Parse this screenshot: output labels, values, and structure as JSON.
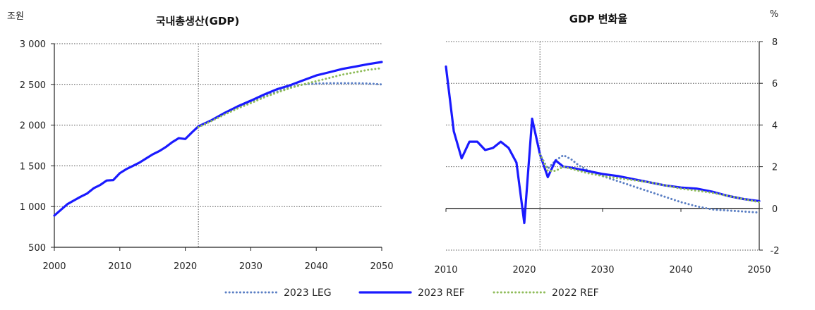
{
  "chart_data": [
    {
      "type": "line",
      "title": "국내총생산(GDP)",
      "unit_label": "조원",
      "xlim": [
        2000,
        2050
      ],
      "ylim": [
        500,
        3000
      ],
      "x_ticks": [
        2000,
        2010,
        2020,
        2030,
        2040,
        2050
      ],
      "y_ticks": [
        500,
        1000,
        1500,
        2000,
        2500,
        3000
      ],
      "x_tick_labels": [
        "2000",
        "2010",
        "2020",
        "2030",
        "2040",
        "2050"
      ],
      "y_tick_labels": [
        "500",
        "1 000",
        "1 500",
        "2 000",
        "2 500",
        "3 000"
      ],
      "grid": "horizontal dotted",
      "reference_line_x": 2022,
      "series": [
        {
          "name": "2023 LEG",
          "style": "dotted",
          "color": "#5b7fc4",
          "x": [
            2022,
            2024,
            2026,
            2028,
            2030,
            2032,
            2034,
            2036,
            2038,
            2040,
            2042,
            2044,
            2046,
            2048,
            2050
          ],
          "y": [
            1985,
            2060,
            2140,
            2215,
            2285,
            2350,
            2410,
            2465,
            2500,
            2510,
            2515,
            2515,
            2515,
            2510,
            2500
          ]
        },
        {
          "name": "2023 REF",
          "style": "solid",
          "color": "#1a1aff",
          "x": [
            2000,
            2001,
            2002,
            2003,
            2004,
            2005,
            2006,
            2007,
            2008,
            2009,
            2010,
            2011,
            2012,
            2013,
            2014,
            2015,
            2016,
            2017,
            2018,
            2019,
            2020,
            2021,
            2022,
            2024,
            2026,
            2028,
            2030,
            2032,
            2034,
            2036,
            2038,
            2040,
            2042,
            2044,
            2046,
            2048,
            2050
          ],
          "y": [
            890,
            960,
            1030,
            1075,
            1120,
            1160,
            1225,
            1265,
            1320,
            1325,
            1410,
            1460,
            1500,
            1540,
            1590,
            1640,
            1680,
            1730,
            1790,
            1840,
            1830,
            1910,
            1985,
            2060,
            2150,
            2230,
            2300,
            2375,
            2440,
            2490,
            2550,
            2610,
            2650,
            2690,
            2720,
            2750,
            2775
          ]
        },
        {
          "name": "2022 REF",
          "style": "dotted",
          "color": "#8fbc5a",
          "x": [
            2022,
            2024,
            2026,
            2028,
            2030,
            2032,
            2034,
            2036,
            2038,
            2040,
            2042,
            2044,
            2046,
            2048,
            2050
          ],
          "y": [
            1975,
            2050,
            2130,
            2205,
            2270,
            2340,
            2400,
            2455,
            2500,
            2540,
            2580,
            2620,
            2650,
            2680,
            2700
          ]
        }
      ]
    },
    {
      "type": "line",
      "title": "GDP 변화율",
      "unit_label": "%",
      "xlim": [
        2010,
        2050
      ],
      "ylim": [
        -2,
        8
      ],
      "x_ticks": [
        2010,
        2020,
        2030,
        2040,
        2050
      ],
      "y_ticks": [
        -2,
        0,
        2,
        4,
        6,
        8
      ],
      "x_tick_labels": [
        "2010",
        "2020",
        "2030",
        "2040",
        "2050"
      ],
      "y_tick_labels": [
        "-2",
        "0",
        "2",
        "4",
        "6",
        "8"
      ],
      "grid": "horizontal dotted",
      "reference_line_x": 2022,
      "series": [
        {
          "name": "2023 LEG",
          "style": "dotted",
          "color": "#5b7fc4",
          "x": [
            2022,
            2023,
            2024,
            2025,
            2026,
            2027,
            2028,
            2030,
            2032,
            2034,
            2036,
            2038,
            2040,
            2042,
            2044,
            2046,
            2048,
            2050
          ],
          "y": [
            2.6,
            1.9,
            2.3,
            2.55,
            2.35,
            2.05,
            1.85,
            1.55,
            1.3,
            1.05,
            0.8,
            0.55,
            0.3,
            0.1,
            -0.05,
            -0.1,
            -0.15,
            -0.2
          ]
        },
        {
          "name": "2023 REF",
          "style": "solid",
          "color": "#1a1aff",
          "x": [
            2010,
            2011,
            2012,
            2013,
            2014,
            2015,
            2016,
            2017,
            2018,
            2019,
            2020,
            2021,
            2022,
            2023,
            2024,
            2025,
            2026,
            2028,
            2030,
            2032,
            2034,
            2036,
            2038,
            2040,
            2042,
            2044,
            2046,
            2048,
            2050
          ],
          "y": [
            6.8,
            3.7,
            2.4,
            3.2,
            3.2,
            2.8,
            2.9,
            3.2,
            2.9,
            2.2,
            -0.7,
            4.3,
            2.6,
            1.5,
            2.3,
            2.0,
            1.95,
            1.8,
            1.65,
            1.55,
            1.4,
            1.25,
            1.1,
            1.0,
            0.95,
            0.8,
            0.6,
            0.45,
            0.35
          ]
        },
        {
          "name": "2022 REF",
          "style": "dotted",
          "color": "#8fbc5a",
          "x": [
            2022,
            2023,
            2024,
            2025,
            2026,
            2028,
            2030,
            2032,
            2034,
            2036,
            2038,
            2040,
            2042,
            2044,
            2046,
            2048,
            2050
          ],
          "y": [
            2.6,
            1.8,
            1.8,
            2.0,
            1.9,
            1.7,
            1.55,
            1.45,
            1.35,
            1.25,
            1.1,
            0.95,
            0.85,
            0.75,
            0.6,
            0.45,
            0.3
          ]
        }
      ]
    }
  ],
  "legend": {
    "placement": "bottom-center",
    "items": [
      {
        "label": "2023 LEG",
        "style": "dotted",
        "color": "#5b7fc4"
      },
      {
        "label": "2023 REF",
        "style": "solid",
        "color": "#1a1aff"
      },
      {
        "label": "2022 REF",
        "style": "dotted",
        "color": "#8fbc5a"
      }
    ]
  }
}
